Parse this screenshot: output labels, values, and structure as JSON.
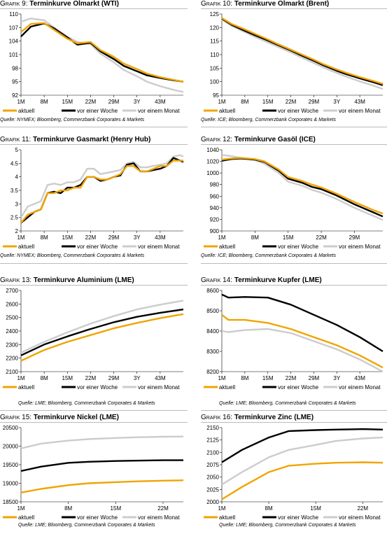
{
  "legend": {
    "current": "aktuell",
    "week": "vor einer Woche",
    "month": "vor einem Monat"
  },
  "colors": {
    "current": "#f0a400",
    "week": "#000000",
    "month": "#cccccc"
  },
  "panels": [
    {
      "prefix": "Grafik 9:",
      "name": "Terminkurve Olmarkt (WTI)",
      "source": "Quelle: NYMEX; Bloomberg, Commerzbank Corporates & Markets",
      "chart_data": {
        "type": "line",
        "title": "Terminkurve Olmarkt (WTI)",
        "x": [
          1,
          4,
          8,
          11,
          15,
          18,
          22,
          25,
          29,
          32,
          36,
          39,
          43,
          47,
          50
        ],
        "xticks": [
          1,
          8,
          15,
          22,
          29,
          36,
          43
        ],
        "xticklabels": [
          "1M",
          "8M",
          "15M",
          "22M",
          "29M",
          "3Y",
          "43M"
        ],
        "xlim": [
          1,
          50
        ],
        "ylim": [
          92,
          110
        ],
        "yticks": [
          92,
          95,
          98,
          101,
          104,
          107,
          110
        ],
        "series": [
          {
            "name": "aktuell",
            "values": [
              106.0,
              107.8,
              108.0,
              106.5,
              104.5,
              103.5,
              103.8,
              102.0,
              100.5,
              99.0,
              97.8,
              96.8,
              96.0,
              95.4,
              95.0
            ]
          },
          {
            "name": "vor einer Woche",
            "values": [
              105.0,
              107.2,
              107.9,
              106.8,
              104.8,
              103.2,
              103.6,
              101.7,
              100.0,
              98.5,
              97.3,
              96.4,
              95.8,
              95.3,
              95.0
            ]
          },
          {
            "name": "vor einem Monat",
            "values": [
              108.3,
              109.0,
              108.6,
              107.0,
              105.0,
              103.8,
              103.3,
              101.2,
              99.3,
              97.6,
              96.2,
              95.0,
              94.0,
              93.2,
              92.7
            ]
          }
        ]
      }
    },
    {
      "prefix": "Grafik 10:",
      "name": "Terminkurve Olmarkt (Brent)",
      "source": "Quelle: ICE; Bloomberg, Commerzbank Corporates & Markets",
      "chart_data": {
        "type": "line",
        "title": "Terminkurve Olmarkt (Brent)",
        "x": [
          1,
          4,
          8,
          11,
          15,
          18,
          22,
          25,
          29,
          32,
          36,
          39,
          43,
          47,
          50
        ],
        "xticks": [
          1,
          8,
          15,
          22,
          29,
          36,
          43
        ],
        "xticklabels": [
          "1M",
          "8M",
          "15M",
          "22M",
          "29M",
          "3Y",
          "43M"
        ],
        "xlim": [
          1,
          50
        ],
        "ylim": [
          95,
          125
        ],
        "yticks": [
          95,
          100,
          105,
          110,
          115,
          120,
          125
        ],
        "series": [
          {
            "name": "aktuell",
            "values": [
              123.5,
              121.3,
              119.3,
              117.7,
              115.6,
              113.9,
              111.8,
              110.2,
              108.1,
              106.4,
              104.5,
              103.2,
              101.7,
              100.3,
              99.2
            ]
          },
          {
            "name": "vor einer Woche",
            "values": [
              123.3,
              121.0,
              118.8,
              117.2,
              115.2,
              113.6,
              111.5,
              109.8,
              107.7,
              106.0,
              104.0,
              102.7,
              101.2,
              99.8,
              98.7
            ]
          },
          {
            "name": "vor einem Monat",
            "values": [
              123.0,
              120.6,
              118.3,
              116.6,
              114.5,
              112.9,
              110.8,
              109.1,
              106.9,
              105.2,
              103.2,
              101.8,
              100.1,
              98.6,
              97.3
            ]
          }
        ]
      }
    },
    {
      "prefix": "Grafik 11:",
      "name": "Terminkurve Gasmarkt (Henry Hub)",
      "source": "Quelle: NYMEX; Bloomberg, Commerzbank Corporates & Markets",
      "chart_data": {
        "type": "line",
        "title": "Terminkurve Gasmarkt (Henry Hub)",
        "x": [
          1,
          3,
          5,
          7,
          9,
          11,
          13,
          15,
          17,
          19,
          21,
          23,
          25,
          27,
          29,
          31,
          33,
          35,
          37,
          39,
          41,
          43,
          45,
          47,
          49,
          50
        ],
        "xticks": [
          1,
          8,
          15,
          22,
          29,
          36,
          43
        ],
        "xticklabels": [
          "1M",
          "8M",
          "15M",
          "22M",
          "29M",
          "3Y",
          "43M"
        ],
        "xlim": [
          1,
          50
        ],
        "ylim": [
          2.0,
          5.0
        ],
        "yticks": [
          2.0,
          2.5,
          3.0,
          3.5,
          4.0,
          4.5,
          5.0
        ],
        "series": [
          {
            "name": "aktuell",
            "values": [
              2.3,
              2.6,
              2.7,
              2.8,
              3.4,
              3.4,
              3.5,
              3.5,
              3.6,
              3.6,
              4.0,
              4.0,
              3.9,
              3.9,
              4.0,
              4.1,
              4.4,
              4.4,
              4.2,
              4.2,
              4.3,
              4.4,
              4.4,
              4.6,
              4.6,
              4.6
            ]
          },
          {
            "name": "vor einer Woche",
            "values": [
              2.3,
              2.5,
              2.7,
              2.8,
              3.4,
              3.45,
              3.4,
              3.6,
              3.6,
              3.7,
              4.0,
              4.0,
              3.85,
              3.9,
              4.0,
              4.05,
              4.45,
              4.5,
              4.2,
              4.2,
              4.25,
              4.3,
              4.4,
              4.7,
              4.6,
              4.55
            ]
          },
          {
            "name": "vor einem Monat",
            "values": [
              2.5,
              2.9,
              3.0,
              3.1,
              3.7,
              3.75,
              3.7,
              3.8,
              3.8,
              3.9,
              4.3,
              4.3,
              4.1,
              4.15,
              4.2,
              4.25,
              4.5,
              4.55,
              4.35,
              4.35,
              4.4,
              4.45,
              4.5,
              4.75,
              4.8,
              4.75
            ]
          }
        ]
      }
    },
    {
      "prefix": "Grafik 12:",
      "name": "Terminkurve Gasöl (ICE)",
      "source": "Quelle: ICE; Bloomberg, Commerzbank Corporates & Markets",
      "chart_data": {
        "type": "line",
        "title": "Terminkurve Gasöl (ICE)",
        "x": [
          1,
          3,
          5,
          8,
          10,
          13,
          15,
          18,
          20,
          22,
          25,
          29,
          31,
          33,
          35
        ],
        "xticks": [
          1,
          8,
          15,
          22,
          29
        ],
        "xticklabels": [
          "1M",
          "8M",
          "15M",
          "22M",
          "29M"
        ],
        "xlim": [
          1,
          35
        ],
        "ylim": [
          900,
          1040
        ],
        "yticks": [
          900,
          920,
          940,
          960,
          980,
          1000,
          1020,
          1040
        ],
        "series": [
          {
            "name": "aktuell",
            "values": [
              1023,
              1025,
              1026,
              1024,
              1020,
              1006,
              993,
              986,
              980,
              975,
              965,
              950,
              943,
              936,
              930
            ]
          },
          {
            "name": "vor einer Woche",
            "values": [
              1021,
              1024,
              1025,
              1023,
              1019,
              1004,
              990,
              983,
              976,
              972,
              962,
              946,
              939,
              932,
              925
            ]
          },
          {
            "name": "vor einem Monat",
            "values": [
              1031,
              1029,
              1026,
              1022,
              1016,
              1000,
              985,
              978,
              971,
              966,
              956,
              940,
              933,
              926,
              919
            ]
          }
        ]
      }
    },
    {
      "prefix": "Grafik 13:",
      "name": "Terminkurve Aluminium (LME)",
      "source": "Quelle: LME; Bloomberg, Commerzbank Corporates & Markets",
      "chart_data": {
        "type": "line",
        "title": "Terminkurve Aluminium (LME)",
        "x": [
          1,
          8,
          15,
          22,
          29,
          36,
          43,
          50
        ],
        "xticks": [
          1,
          8,
          15,
          22,
          29,
          36,
          43
        ],
        "xticklabels": [
          "1M",
          "8M",
          "15M",
          "22M",
          "29M",
          "3Y",
          "43M"
        ],
        "xlim": [
          1,
          50
        ],
        "ylim": [
          2100,
          2700
        ],
        "yticks": [
          2100,
          2200,
          2300,
          2400,
          2500,
          2600,
          2700
        ],
        "series": [
          {
            "name": "aktuell",
            "values": [
              2180,
              2260,
              2320,
              2370,
              2420,
              2460,
              2495,
              2525
            ]
          },
          {
            "name": "vor einer Woche",
            "values": [
              2220,
              2300,
              2360,
              2415,
              2465,
              2505,
              2535,
              2560
            ]
          },
          {
            "name": "vor einem Monat",
            "values": [
              2240,
              2320,
              2390,
              2455,
              2510,
              2560,
              2595,
              2625
            ]
          }
        ]
      }
    },
    {
      "prefix": "Grafik 14:",
      "name": "Terminkurve Kupfer (LME)",
      "source": "Quelle: LME; Bloomberg, Commerzbank Corporates & Markets",
      "chart_data": {
        "type": "line",
        "title": "Terminkurve Kupfer (LME)",
        "x": [
          1,
          3,
          8,
          15,
          22,
          29,
          36,
          43,
          50
        ],
        "xticks": [
          1,
          8,
          15,
          22,
          29,
          36,
          43
        ],
        "xticklabels": [
          "1M",
          "8M",
          "15M",
          "22M",
          "29M",
          "3Y",
          "43M"
        ],
        "xlim": [
          1,
          50
        ],
        "ylim": [
          8200,
          8600
        ],
        "yticks": [
          8200,
          8300,
          8400,
          8500,
          8600
        ],
        "series": [
          {
            "name": "aktuell",
            "values": [
              8480,
              8455,
              8455,
              8440,
              8410,
              8370,
              8330,
              8280,
              8220
            ]
          },
          {
            "name": "vor einer Woche",
            "values": [
              8580,
              8565,
              8568,
              8565,
              8530,
              8480,
              8430,
              8370,
              8300
            ]
          },
          {
            "name": "vor einem Monat",
            "values": [
              8400,
              8395,
              8405,
              8410,
              8390,
              8350,
              8310,
              8260,
              8200
            ]
          }
        ]
      }
    },
    {
      "prefix": "Grafik 15:",
      "name": "Terminkurve Nickel (LME)",
      "source": "Quelle: LME; Bloomberg, Commerzbank Corporates & Markets",
      "chart_data": {
        "type": "line",
        "title": "Terminkurve Nickel (LME)",
        "x": [
          1,
          4,
          8,
          11,
          15,
          18,
          22,
          25
        ],
        "xticks": [
          1,
          8,
          15,
          22
        ],
        "xticklabels": [
          "1M",
          "8M",
          "15M",
          "22M"
        ],
        "xlim": [
          1,
          25
        ],
        "ylim": [
          18500,
          20500
        ],
        "yticks": [
          18500,
          19000,
          19500,
          20000,
          20500
        ],
        "series": [
          {
            "name": "aktuell",
            "values": [
              18750,
              18850,
              18950,
              19000,
              19030,
              19050,
              19070,
              19080
            ]
          },
          {
            "name": "vor einer Woche",
            "values": [
              19330,
              19450,
              19550,
              19580,
              19600,
              19610,
              19620,
              19620
            ]
          },
          {
            "name": "vor einem Monat",
            "values": [
              19940,
              20070,
              20150,
              20190,
              20220,
              20240,
              20255,
              20260
            ]
          }
        ]
      }
    },
    {
      "prefix": "Grafik 16:",
      "name": "Terminkurve Zinc (LME)",
      "source": "Quelle: LME; Bloomberg, Commerzbank Corporates & Markets",
      "chart_data": {
        "type": "line",
        "title": "Terminkurve Zinc (LME)",
        "x": [
          1,
          4,
          8,
          11,
          15,
          18,
          22,
          25
        ],
        "xticks": [
          1,
          8,
          15,
          22
        ],
        "xticklabels": [
          "1M",
          "8M",
          "15M",
          "22M"
        ],
        "xlim": [
          1,
          25
        ],
        "ylim": [
          2000,
          2150
        ],
        "yticks": [
          2000,
          2025,
          2050,
          2075,
          2100,
          2125,
          2150
        ],
        "series": [
          {
            "name": "aktuell",
            "values": [
              2005,
              2030,
              2060,
              2073,
              2077,
              2079,
              2080,
              2079
            ]
          },
          {
            "name": "vor einer Woche",
            "values": [
              2080,
              2105,
              2130,
              2143,
              2145,
              2146,
              2147,
              2146
            ]
          },
          {
            "name": "vor einem Monat",
            "values": [
              2035,
              2060,
              2090,
              2105,
              2115,
              2123,
              2128,
              2130
            ]
          }
        ]
      }
    }
  ]
}
